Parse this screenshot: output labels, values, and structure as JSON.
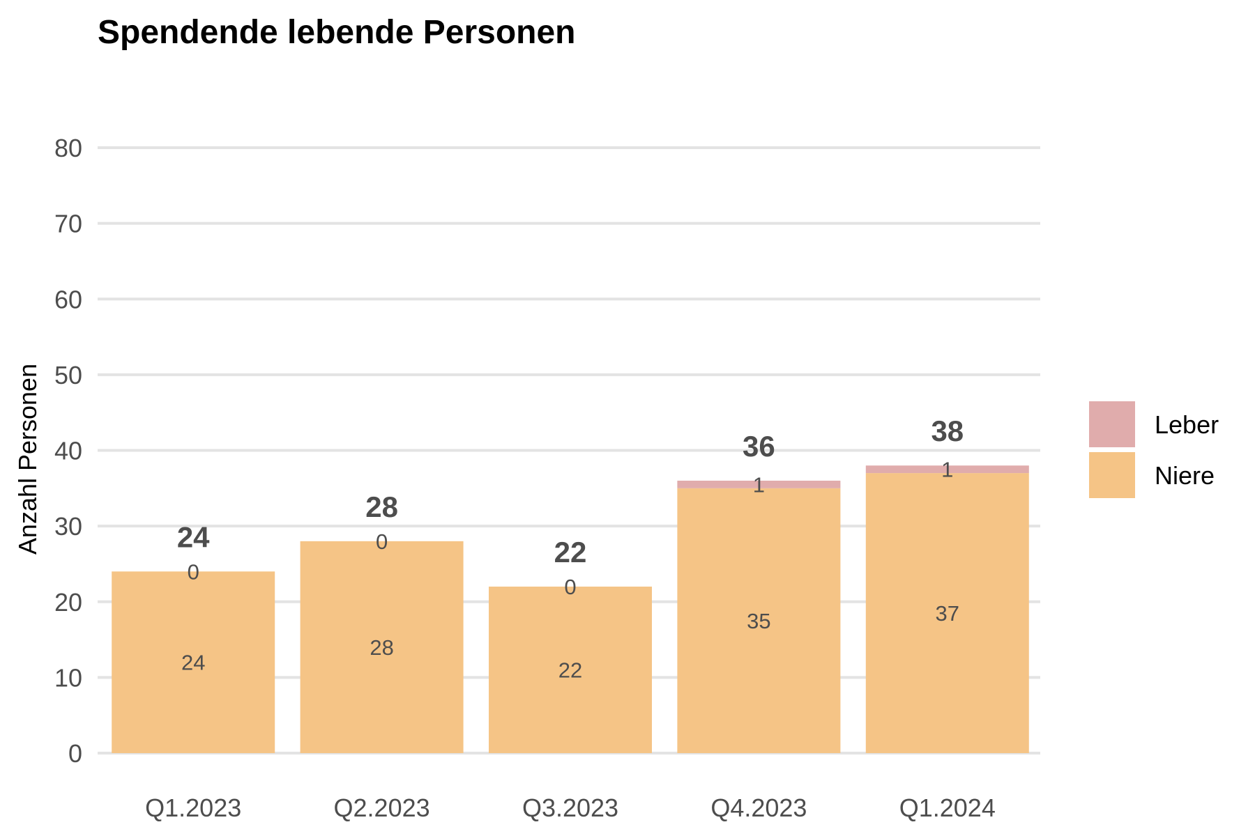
{
  "chart_data": {
    "type": "bar",
    "stacked": true,
    "title": "Spendende lebende Personen",
    "xlabel": "",
    "ylabel": "Anzahl Personen",
    "categories": [
      "Q1.2023",
      "Q2.2023",
      "Q3.2023",
      "Q4.2023",
      "Q1.2024"
    ],
    "series": [
      {
        "name": "Niere",
        "values": [
          24,
          28,
          22,
          35,
          37
        ],
        "color": "#f5c486"
      },
      {
        "name": "Leber",
        "values": [
          0,
          0,
          0,
          1,
          1
        ],
        "color": "#e0acac"
      }
    ],
    "totals": [
      24,
      28,
      22,
      36,
      38
    ],
    "ylim": [
      0,
      80
    ],
    "yticks": [
      0,
      10,
      20,
      30,
      40,
      50,
      60,
      70,
      80
    ],
    "grid": true,
    "legend_position": "right",
    "legend_order": [
      "Leber",
      "Niere"
    ]
  }
}
